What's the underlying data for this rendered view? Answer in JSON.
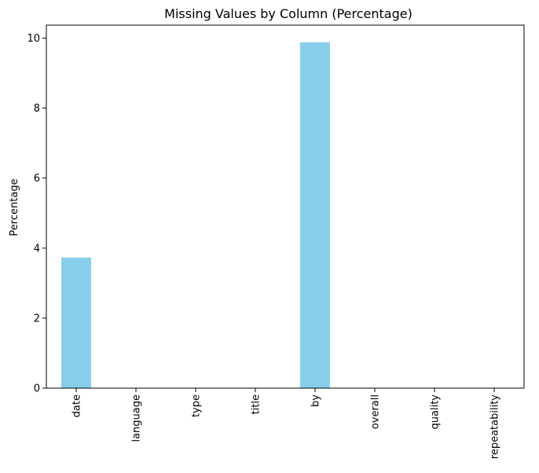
{
  "chart_data": {
    "type": "bar",
    "title": "Missing Values by Column (Percentage)",
    "xlabel": "",
    "ylabel": "Percentage",
    "categories": [
      "date",
      "language",
      "type",
      "title",
      "by",
      "overall",
      "quality",
      "repeatability"
    ],
    "values": [
      3.73,
      0,
      0,
      0,
      9.88,
      0,
      0,
      0
    ],
    "ylim": [
      0,
      10.37
    ],
    "yticks": [
      0,
      2,
      4,
      6,
      8,
      10
    ],
    "bar_color": "#87ceeb",
    "grid": false,
    "legend": "none"
  }
}
